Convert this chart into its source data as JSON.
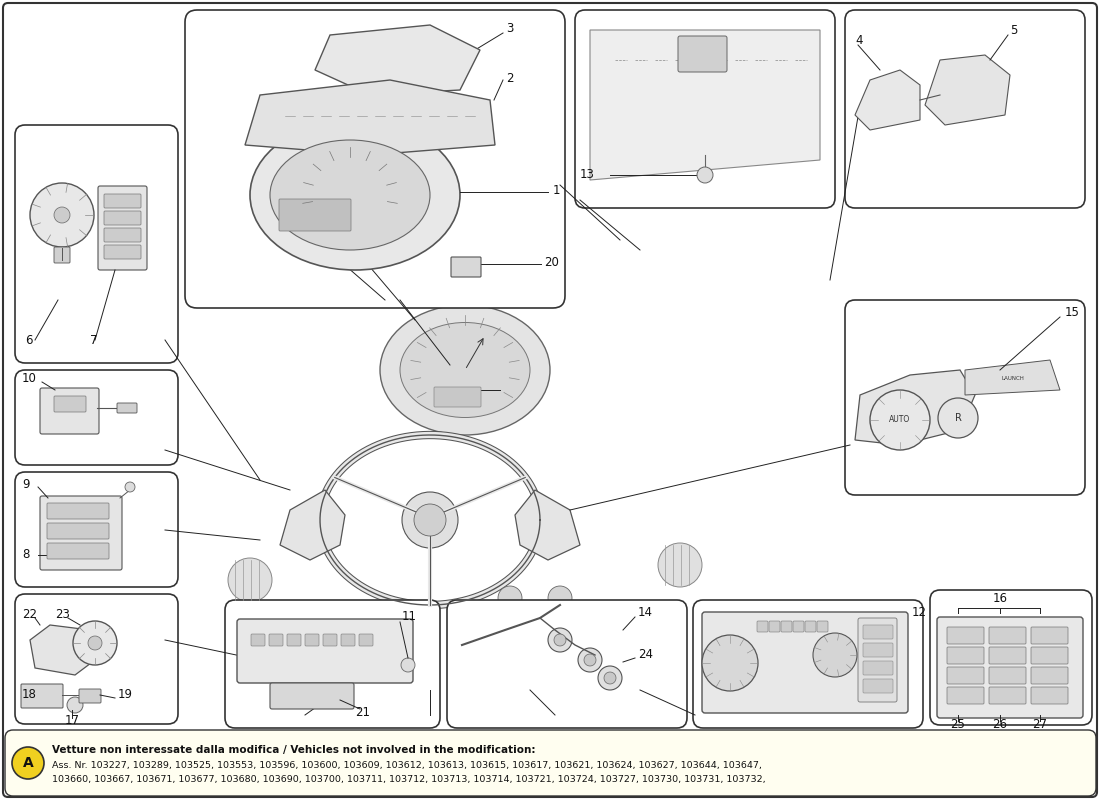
{
  "background_color": "#ffffff",
  "watermark_color": "#c8a020",
  "watermark_alpha": 0.18,
  "footnote_title": "Vetture non interessate dalla modifica / Vehicles not involved in the modification:",
  "footnote_line1": "Ass. Nr. 103227, 103289, 103525, 103553, 103596, 103600, 103609, 103612, 103613, 103615, 103617, 103621, 103624, 103627, 103644, 103647,",
  "footnote_line2": "103660, 103667, 103671, 103677, 103680, 103690, 103700, 103711, 103712, 103713, 103714, 103721, 103724, 103727, 103730, 103731, 103732,",
  "footnote_A_color": "#f0d020",
  "fig_width": 11.0,
  "fig_height": 8.0,
  "dpi": 100,
  "line_color": "#222222",
  "box_edge_color": "#333333",
  "part_line_color": "#111111"
}
